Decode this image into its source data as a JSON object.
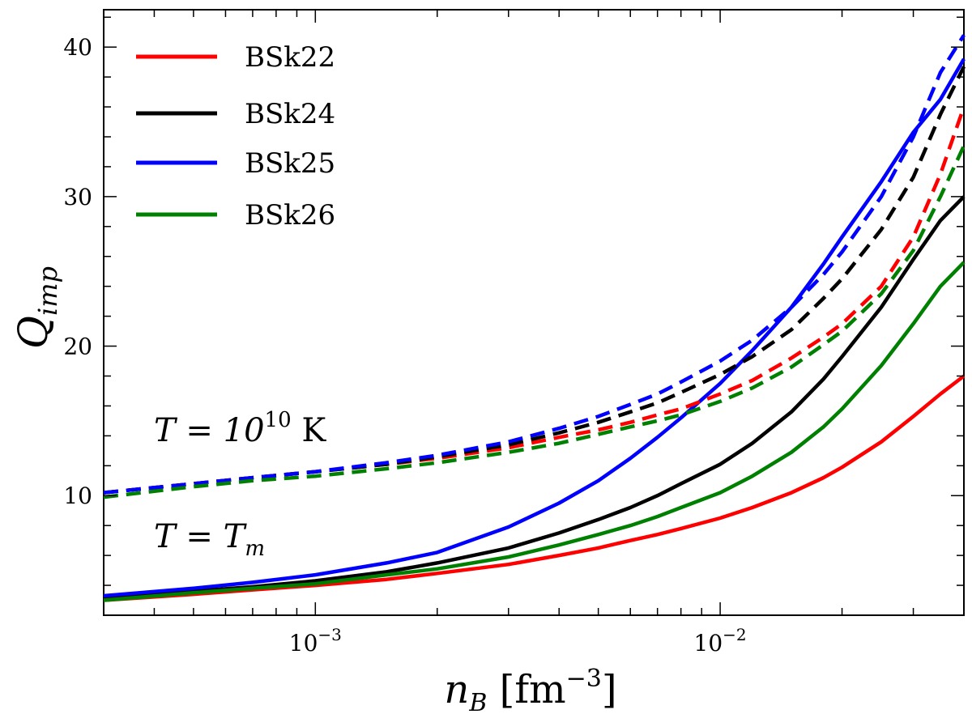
{
  "chart_data": {
    "type": "line",
    "xscale": "log",
    "xlim": [
      0.0003,
      0.04
    ],
    "ylim": [
      2,
      42.5
    ],
    "xlabel": {
      "main": "n",
      "sub": "B",
      "unit": "[fm",
      "exp": "−3",
      "close": "]"
    },
    "ylabel": {
      "main": "Q",
      "sub": "imp"
    },
    "xticks": [
      {
        "value": 0.001,
        "base": "10",
        "exp": "−3"
      },
      {
        "value": 0.01,
        "base": "10",
        "exp": "−2"
      }
    ],
    "yticks": [
      10,
      20,
      30,
      40
    ],
    "legend": {
      "position": "top-left"
    },
    "annotations": [
      {
        "id": "annot-hot",
        "base": "T = 10",
        "exp": "10",
        "tail": " K"
      },
      {
        "id": "annot-melt",
        "base": "T = T",
        "sub": "m"
      }
    ],
    "x": [
      0.0003,
      0.0005,
      0.0007,
      0.001,
      0.0015,
      0.002,
      0.003,
      0.004,
      0.005,
      0.006,
      0.007,
      0.008,
      0.01,
      0.012,
      0.015,
      0.018,
      0.02,
      0.025,
      0.03,
      0.035,
      0.04
    ],
    "series": [
      {
        "name": "BSk22",
        "color": "#ff0000",
        "style": "solid",
        "values": [
          3.0,
          3.4,
          3.7,
          4.0,
          4.4,
          4.8,
          5.4,
          6.0,
          6.5,
          7.0,
          7.4,
          7.8,
          8.5,
          9.2,
          10.2,
          11.2,
          11.9,
          13.6,
          15.3,
          16.8,
          18.0
        ]
      },
      {
        "name": "BSk24",
        "color": "#000000",
        "style": "solid",
        "values": [
          3.1,
          3.6,
          3.9,
          4.3,
          4.9,
          5.5,
          6.5,
          7.5,
          8.4,
          9.2,
          10.0,
          10.8,
          12.1,
          13.5,
          15.6,
          17.8,
          19.3,
          22.6,
          25.8,
          28.4,
          30.0
        ]
      },
      {
        "name": "BSk25",
        "color": "#0000ff",
        "style": "solid",
        "values": [
          3.3,
          3.8,
          4.2,
          4.7,
          5.5,
          6.2,
          7.9,
          9.5,
          11.0,
          12.5,
          13.9,
          15.2,
          17.5,
          19.7,
          22.6,
          25.5,
          27.3,
          31.0,
          34.3,
          36.5,
          39.2
        ]
      },
      {
        "name": "BSk26",
        "color": "#008000",
        "style": "solid",
        "values": [
          3.0,
          3.5,
          3.8,
          4.1,
          4.7,
          5.1,
          5.9,
          6.7,
          7.4,
          8.0,
          8.6,
          9.2,
          10.2,
          11.3,
          12.9,
          14.6,
          15.8,
          18.7,
          21.5,
          24.0,
          25.6
        ]
      },
      {
        "name": "BSk22 (T = 10^10 K)",
        "color": "#ff0000",
        "style": "dashed",
        "values": [
          10.2,
          10.8,
          11.2,
          11.6,
          12.1,
          12.5,
          13.2,
          13.9,
          14.4,
          14.9,
          15.4,
          15.8,
          16.8,
          17.7,
          19.2,
          20.6,
          21.5,
          24.0,
          27.3,
          31.5,
          36.0
        ]
      },
      {
        "name": "BSk24 (T = 10^10 K)",
        "color": "#000000",
        "style": "dashed",
        "values": [
          10.2,
          10.8,
          11.2,
          11.6,
          12.1,
          12.6,
          13.4,
          14.2,
          14.9,
          15.6,
          16.2,
          16.9,
          18.1,
          19.3,
          21.1,
          23.2,
          24.5,
          27.8,
          31.3,
          35.5,
          38.7
        ]
      },
      {
        "name": "BSk25 (T = 10^10 K)",
        "color": "#0000ff",
        "style": "dashed",
        "values": [
          10.2,
          10.8,
          11.2,
          11.6,
          12.2,
          12.7,
          13.6,
          14.5,
          15.3,
          16.1,
          16.8,
          17.6,
          19.0,
          20.4,
          22.6,
          24.8,
          26.3,
          30.0,
          34.0,
          38.3,
          40.8
        ]
      },
      {
        "name": "BSk26 (T = 10^10 K)",
        "color": "#008000",
        "style": "dashed",
        "values": [
          9.9,
          10.6,
          11.0,
          11.3,
          11.8,
          12.2,
          12.9,
          13.5,
          14.1,
          14.6,
          15.0,
          15.4,
          16.3,
          17.2,
          18.6,
          20.1,
          21.0,
          23.5,
          26.4,
          30.0,
          33.4
        ]
      }
    ]
  }
}
